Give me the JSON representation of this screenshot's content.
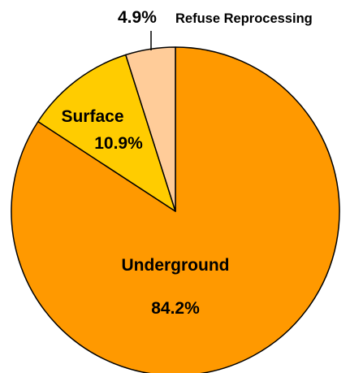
{
  "chart_data": {
    "type": "pie",
    "title": "",
    "slices": [
      {
        "label": "Underground",
        "value": 84.2,
        "value_label": "84.2%",
        "color": "#FF9900"
      },
      {
        "label": "Surface",
        "value": 10.9,
        "value_label": "10.9%",
        "color": "#FFCC00"
      },
      {
        "label": "Refuse Reprocessing",
        "value": 4.9,
        "value_label": "4.9%",
        "color": "#FFCC99"
      }
    ],
    "start_angle": "12 o'clock",
    "direction": "clockwise",
    "outline_color": "#000000"
  }
}
